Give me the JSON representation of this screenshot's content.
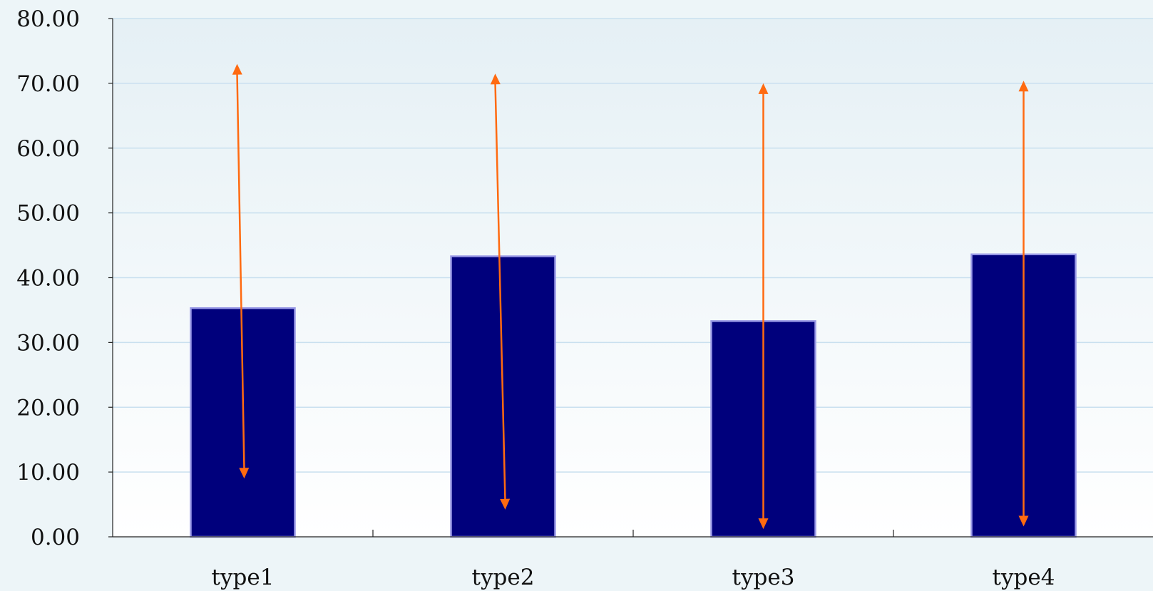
{
  "chart_data": {
    "type": "bar",
    "categories": [
      "type1",
      "type2",
      "type3",
      "type4"
    ],
    "values": [
      35.3,
      43.3,
      33.3,
      43.6
    ],
    "arrows": [
      {
        "category": "type1",
        "top": 73.0,
        "bottom": 9.0
      },
      {
        "category": "type2",
        "top": 71.5,
        "bottom": 4.2
      },
      {
        "category": "type3",
        "top": 70.0,
        "bottom": 1.2
      },
      {
        "category": "type4",
        "top": 70.4,
        "bottom": 1.6
      }
    ],
    "ylim": [
      0,
      80
    ],
    "yticks": [
      "0.00",
      "10.00",
      "20.00",
      "30.00",
      "40.00",
      "50.00",
      "60.00",
      "70.00",
      "80.00"
    ],
    "grid": true,
    "title": "",
    "xlabel": "",
    "ylabel": "",
    "colors": {
      "bar_fill": "#00007c",
      "bar_edge": "#9999e6",
      "arrow": "#ff6a10",
      "grid": "#c9e0ef",
      "axis": "#222222",
      "plot_bg_top": "#e5f0f5",
      "plot_bg_bottom": "#ffffff",
      "page_bg": "#edf5f8"
    }
  }
}
